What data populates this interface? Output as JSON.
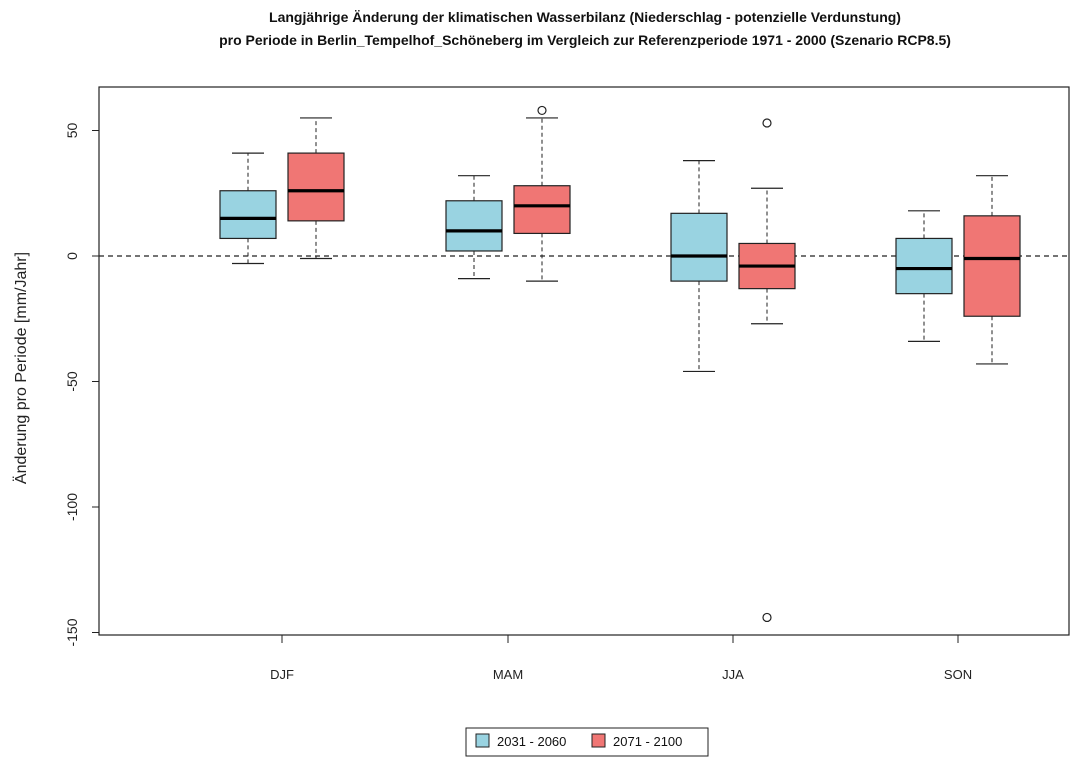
{
  "chart_data": {
    "type": "boxplot",
    "title": "Langjährige Änderung der klimatischen Wasserbilanz (Niederschlag - potenzielle Verdunstung)",
    "subtitle": "pro Periode in Berlin_Tempelhof_Schöneberg im Vergleich zur Referenzperiode 1971 - 2000 (Szenario RCP8.5)",
    "ylabel": "Änderung pro Periode [mm/Jahr]",
    "xlabel": "",
    "ylim": [
      -150,
      60
    ],
    "yticks": [
      -150,
      -100,
      -50,
      0,
      50
    ],
    "reference_line": 0,
    "categories": [
      "DJF",
      "MAM",
      "JJA",
      "SON"
    ],
    "legend_position": "bottom",
    "series": [
      {
        "name": "2031 - 2060",
        "color": "#99d3e1",
        "boxes": [
          {
            "whisker_low": -3,
            "q1": 7,
            "median": 15,
            "q3": 26,
            "whisker_high": 41,
            "outliers": []
          },
          {
            "whisker_low": -9,
            "q1": 2,
            "median": 10,
            "q3": 22,
            "whisker_high": 32,
            "outliers": []
          },
          {
            "whisker_low": -46,
            "q1": -10,
            "median": 0,
            "q3": 17,
            "whisker_high": 38,
            "outliers": []
          },
          {
            "whisker_low": -34,
            "q1": -15,
            "median": -5,
            "q3": 7,
            "whisker_high": 18,
            "outliers": []
          }
        ]
      },
      {
        "name": "2071 - 2100",
        "color": "#f07674",
        "boxes": [
          {
            "whisker_low": -1,
            "q1": 14,
            "median": 26,
            "q3": 41,
            "whisker_high": 55,
            "outliers": []
          },
          {
            "whisker_low": -10,
            "q1": 9,
            "median": 20,
            "q3": 28,
            "whisker_high": 55,
            "outliers": [
              58
            ]
          },
          {
            "whisker_low": -27,
            "q1": -13,
            "median": -4,
            "q3": 5,
            "whisker_high": 27,
            "outliers": [
              53,
              -144
            ]
          },
          {
            "whisker_low": -43,
            "q1": -24,
            "median": -1,
            "q3": 16,
            "whisker_high": 32,
            "outliers": []
          }
        ]
      }
    ]
  }
}
